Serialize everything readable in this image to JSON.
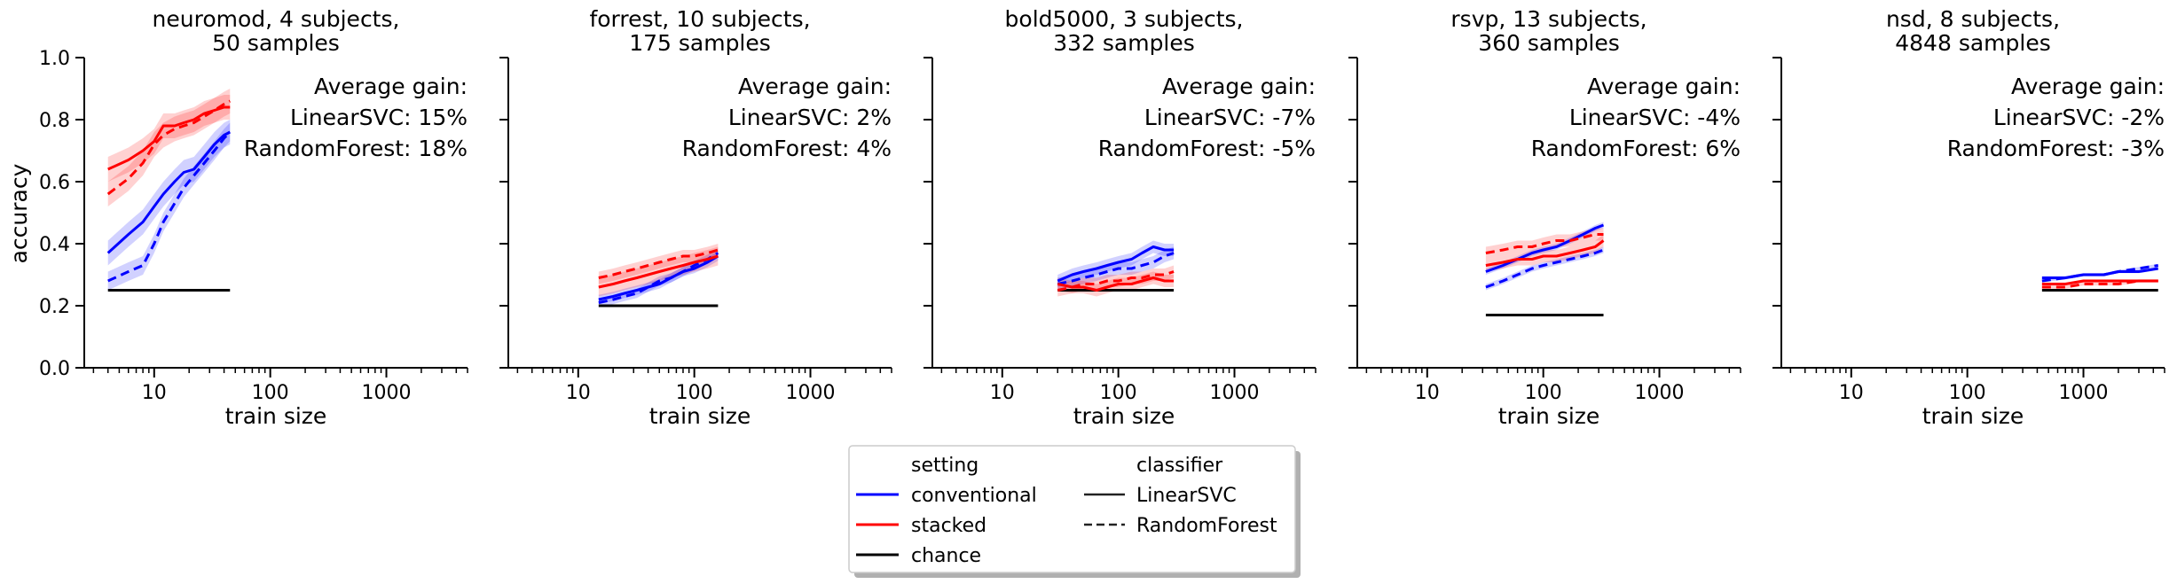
{
  "chart_data": {
    "type": "line",
    "shared_y_label": "accuracy",
    "x_scale": "log",
    "xlim": [
      2.5,
      5000
    ],
    "ylim": [
      0,
      1
    ],
    "y_ticks": [
      "0.0",
      "0.2",
      "0.4",
      "0.6",
      "0.8",
      "1.0"
    ],
    "y_tick_values": [
      0,
      0.2,
      0.4,
      0.6,
      0.8,
      1.0
    ],
    "x_ticks": [
      "10",
      "100",
      "1000"
    ],
    "x_tick_values": [
      10,
      100,
      1000
    ],
    "xlabel": "train size",
    "gain_header": "Average gain:",
    "series_colors": {
      "conventional": "#0000ff",
      "stacked": "#ff0000",
      "chance": "#000000"
    },
    "legend": {
      "placement": "bottom-center",
      "setting_title": "setting",
      "setting_entries": [
        "conventional",
        "stacked",
        "chance"
      ],
      "classifier_title": "classifier",
      "classifier_entries": [
        "LinearSVC",
        "RandomForest"
      ]
    },
    "panels": [
      {
        "title_line1": "neuromod, 4 subjects,",
        "title_line2": "50 samples",
        "gain_svc": "LinearSVC: 15%",
        "gain_rf": "RandomForest: 18%",
        "chance": {
          "x": [
            4,
            45
          ],
          "y": 0.25
        },
        "series": [
          {
            "setting": "conventional",
            "classifier": "LinearSVC",
            "x": [
              4,
              6,
              8,
              10,
              12,
              15,
              18,
              22,
              27,
              33,
              40,
              45
            ],
            "y": [
              0.37,
              0.43,
              0.47,
              0.52,
              0.56,
              0.6,
              0.63,
              0.64,
              0.68,
              0.72,
              0.75,
              0.76
            ],
            "band": 0.04
          },
          {
            "setting": "conventional",
            "classifier": "RandomForest",
            "x": [
              4,
              6,
              8,
              10,
              12,
              15,
              18,
              22,
              27,
              33,
              40,
              45
            ],
            "y": [
              0.28,
              0.31,
              0.33,
              0.4,
              0.47,
              0.53,
              0.58,
              0.62,
              0.66,
              0.7,
              0.74,
              0.76
            ],
            "band": 0.03
          },
          {
            "setting": "stacked",
            "classifier": "LinearSVC",
            "x": [
              4,
              6,
              8,
              10,
              12,
              15,
              18,
              22,
              27,
              33,
              40,
              45
            ],
            "y": [
              0.64,
              0.67,
              0.7,
              0.73,
              0.78,
              0.78,
              0.79,
              0.8,
              0.82,
              0.83,
              0.84,
              0.84
            ],
            "band": 0.04
          },
          {
            "setting": "stacked",
            "classifier": "RandomForest",
            "x": [
              4,
              6,
              8,
              10,
              12,
              15,
              18,
              22,
              27,
              33,
              40,
              45
            ],
            "y": [
              0.56,
              0.61,
              0.66,
              0.72,
              0.75,
              0.77,
              0.78,
              0.79,
              0.81,
              0.83,
              0.85,
              0.86
            ],
            "band": 0.04
          }
        ]
      },
      {
        "title_line1": "forrest, 10 subjects,",
        "title_line2": "175 samples",
        "gain_svc": "LinearSVC: 2%",
        "gain_rf": "RandomForest: 4%",
        "chance": {
          "x": [
            15,
            160
          ],
          "y": 0.2
        },
        "series": [
          {
            "setting": "conventional",
            "classifier": "LinearSVC",
            "x": [
              15,
              20,
              25,
              32,
              40,
              50,
              63,
              80,
              100,
              130,
              160
            ],
            "y": [
              0.22,
              0.23,
              0.24,
              0.25,
              0.26,
              0.27,
              0.29,
              0.31,
              0.32,
              0.34,
              0.36
            ],
            "band": 0.015
          },
          {
            "setting": "conventional",
            "classifier": "RandomForest",
            "x": [
              15,
              20,
              25,
              32,
              40,
              50,
              63,
              80,
              100,
              130,
              160
            ],
            "y": [
              0.21,
              0.22,
              0.23,
              0.24,
              0.26,
              0.28,
              0.29,
              0.31,
              0.33,
              0.35,
              0.37
            ],
            "band": 0.015
          },
          {
            "setting": "stacked",
            "classifier": "LinearSVC",
            "x": [
              15,
              20,
              25,
              32,
              40,
              50,
              63,
              80,
              100,
              130,
              160
            ],
            "y": [
              0.26,
              0.27,
              0.28,
              0.29,
              0.3,
              0.31,
              0.32,
              0.33,
              0.34,
              0.35,
              0.36
            ],
            "band": 0.03
          },
          {
            "setting": "stacked",
            "classifier": "RandomForest",
            "x": [
              15,
              20,
              25,
              32,
              40,
              50,
              63,
              80,
              100,
              130,
              160
            ],
            "y": [
              0.29,
              0.3,
              0.31,
              0.32,
              0.33,
              0.34,
              0.35,
              0.36,
              0.36,
              0.37,
              0.38
            ],
            "band": 0.02
          }
        ]
      },
      {
        "title_line1": "bold5000, 3 subjects,",
        "title_line2": "332 samples",
        "gain_svc": "LinearSVC: -7%",
        "gain_rf": "RandomForest: -5%",
        "chance": {
          "x": [
            30,
            300
          ],
          "y": 0.25
        },
        "series": [
          {
            "setting": "conventional",
            "classifier": "LinearSVC",
            "x": [
              30,
              40,
              50,
              65,
              80,
              100,
              130,
              160,
              200,
              250,
              300
            ],
            "y": [
              0.28,
              0.3,
              0.31,
              0.32,
              0.33,
              0.34,
              0.35,
              0.37,
              0.39,
              0.38,
              0.38
            ],
            "band": 0.02
          },
          {
            "setting": "conventional",
            "classifier": "RandomForest",
            "x": [
              30,
              40,
              50,
              65,
              80,
              100,
              130,
              160,
              200,
              250,
              300
            ],
            "y": [
              0.27,
              0.28,
              0.29,
              0.3,
              0.31,
              0.32,
              0.32,
              0.33,
              0.34,
              0.36,
              0.37
            ],
            "band": 0.02
          },
          {
            "setting": "stacked",
            "classifier": "LinearSVC",
            "x": [
              30,
              40,
              50,
              65,
              80,
              100,
              130,
              160,
              200,
              250,
              300
            ],
            "y": [
              0.27,
              0.26,
              0.26,
              0.25,
              0.26,
              0.27,
              0.27,
              0.28,
              0.29,
              0.28,
              0.28
            ],
            "band": 0.02
          },
          {
            "setting": "stacked",
            "classifier": "RandomForest",
            "x": [
              30,
              40,
              50,
              65,
              80,
              100,
              130,
              160,
              200,
              250,
              300
            ],
            "y": [
              0.25,
              0.26,
              0.27,
              0.27,
              0.28,
              0.28,
              0.29,
              0.29,
              0.3,
              0.3,
              0.31
            ],
            "band": 0.02
          }
        ]
      },
      {
        "title_line1": "rsvp, 13 subjects,",
        "title_line2": "360 samples",
        "gain_svc": "LinearSVC: -4%",
        "gain_rf": "RandomForest: 6%",
        "chance": {
          "x": [
            32,
            330
          ],
          "y": 0.17
        },
        "series": [
          {
            "setting": "conventional",
            "classifier": "LinearSVC",
            "x": [
              32,
              45,
              60,
              80,
              100,
              130,
              170,
              220,
              280,
              330
            ],
            "y": [
              0.31,
              0.33,
              0.35,
              0.37,
              0.38,
              0.39,
              0.41,
              0.43,
              0.45,
              0.46
            ],
            "band": 0.01
          },
          {
            "setting": "conventional",
            "classifier": "RandomForest",
            "x": [
              32,
              45,
              60,
              80,
              100,
              130,
              170,
              220,
              280,
              330
            ],
            "y": [
              0.26,
              0.28,
              0.3,
              0.32,
              0.33,
              0.34,
              0.35,
              0.36,
              0.37,
              0.38
            ],
            "band": 0.01
          },
          {
            "setting": "stacked",
            "classifier": "LinearSVC",
            "x": [
              32,
              45,
              60,
              80,
              100,
              130,
              170,
              220,
              280,
              330
            ],
            "y": [
              0.33,
              0.34,
              0.35,
              0.35,
              0.36,
              0.36,
              0.37,
              0.38,
              0.39,
              0.41
            ],
            "band": 0.02
          },
          {
            "setting": "stacked",
            "classifier": "RandomForest",
            "x": [
              32,
              45,
              60,
              80,
              100,
              130,
              170,
              220,
              280,
              330
            ],
            "y": [
              0.37,
              0.38,
              0.39,
              0.39,
              0.4,
              0.41,
              0.41,
              0.42,
              0.43,
              0.43
            ],
            "band": 0.02
          }
        ]
      },
      {
        "title_line1": "nsd, 8 subjects,",
        "title_line2": "4848 samples",
        "gain_svc": "LinearSVC: -2%",
        "gain_rf": "RandomForest: -3%",
        "chance": {
          "x": [
            440,
            4400
          ],
          "y": 0.25
        },
        "series": [
          {
            "setting": "conventional",
            "classifier": "LinearSVC",
            "x": [
              440,
              700,
              1000,
              1500,
              2000,
              3000,
              4400
            ],
            "y": [
              0.29,
              0.29,
              0.3,
              0.3,
              0.31,
              0.31,
              0.32
            ],
            "band": 0.005
          },
          {
            "setting": "conventional",
            "classifier": "RandomForest",
            "x": [
              440,
              700,
              1000,
              1500,
              2000,
              3000,
              4400
            ],
            "y": [
              0.28,
              0.29,
              0.3,
              0.3,
              0.31,
              0.32,
              0.33
            ],
            "band": 0.005
          },
          {
            "setting": "stacked",
            "classifier": "LinearSVC",
            "x": [
              440,
              700,
              1000,
              1500,
              2000,
              3000,
              4400
            ],
            "y": [
              0.27,
              0.27,
              0.28,
              0.28,
              0.28,
              0.28,
              0.28
            ],
            "band": 0.005
          },
          {
            "setting": "stacked",
            "classifier": "RandomForest",
            "x": [
              440,
              700,
              1000,
              1500,
              2000,
              3000,
              4400
            ],
            "y": [
              0.26,
              0.26,
              0.27,
              0.27,
              0.27,
              0.28,
              0.28
            ],
            "band": 0.005
          }
        ]
      }
    ]
  }
}
